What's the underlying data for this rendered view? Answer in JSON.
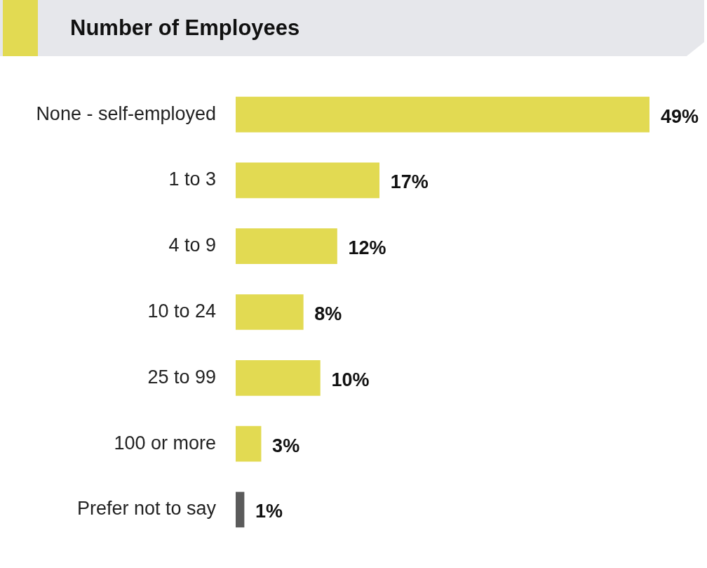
{
  "chart_data": {
    "type": "bar",
    "orientation": "horizontal",
    "title": "Number of Employees",
    "categories": [
      "None - self-employed",
      "1 to 3",
      "4 to 9",
      "10 to 24",
      "25 to 99",
      "100 or more",
      "Prefer not to say"
    ],
    "values": [
      49,
      17,
      12,
      8,
      10,
      3,
      1
    ],
    "value_labels": [
      "49%",
      "17%",
      "12%",
      "8%",
      "10%",
      "3%",
      "1%"
    ],
    "colors": [
      "#e2da52",
      "#e2da52",
      "#e2da52",
      "#e2da52",
      "#e2da52",
      "#e2da52",
      "#5b5b5b"
    ],
    "legend": false
  }
}
